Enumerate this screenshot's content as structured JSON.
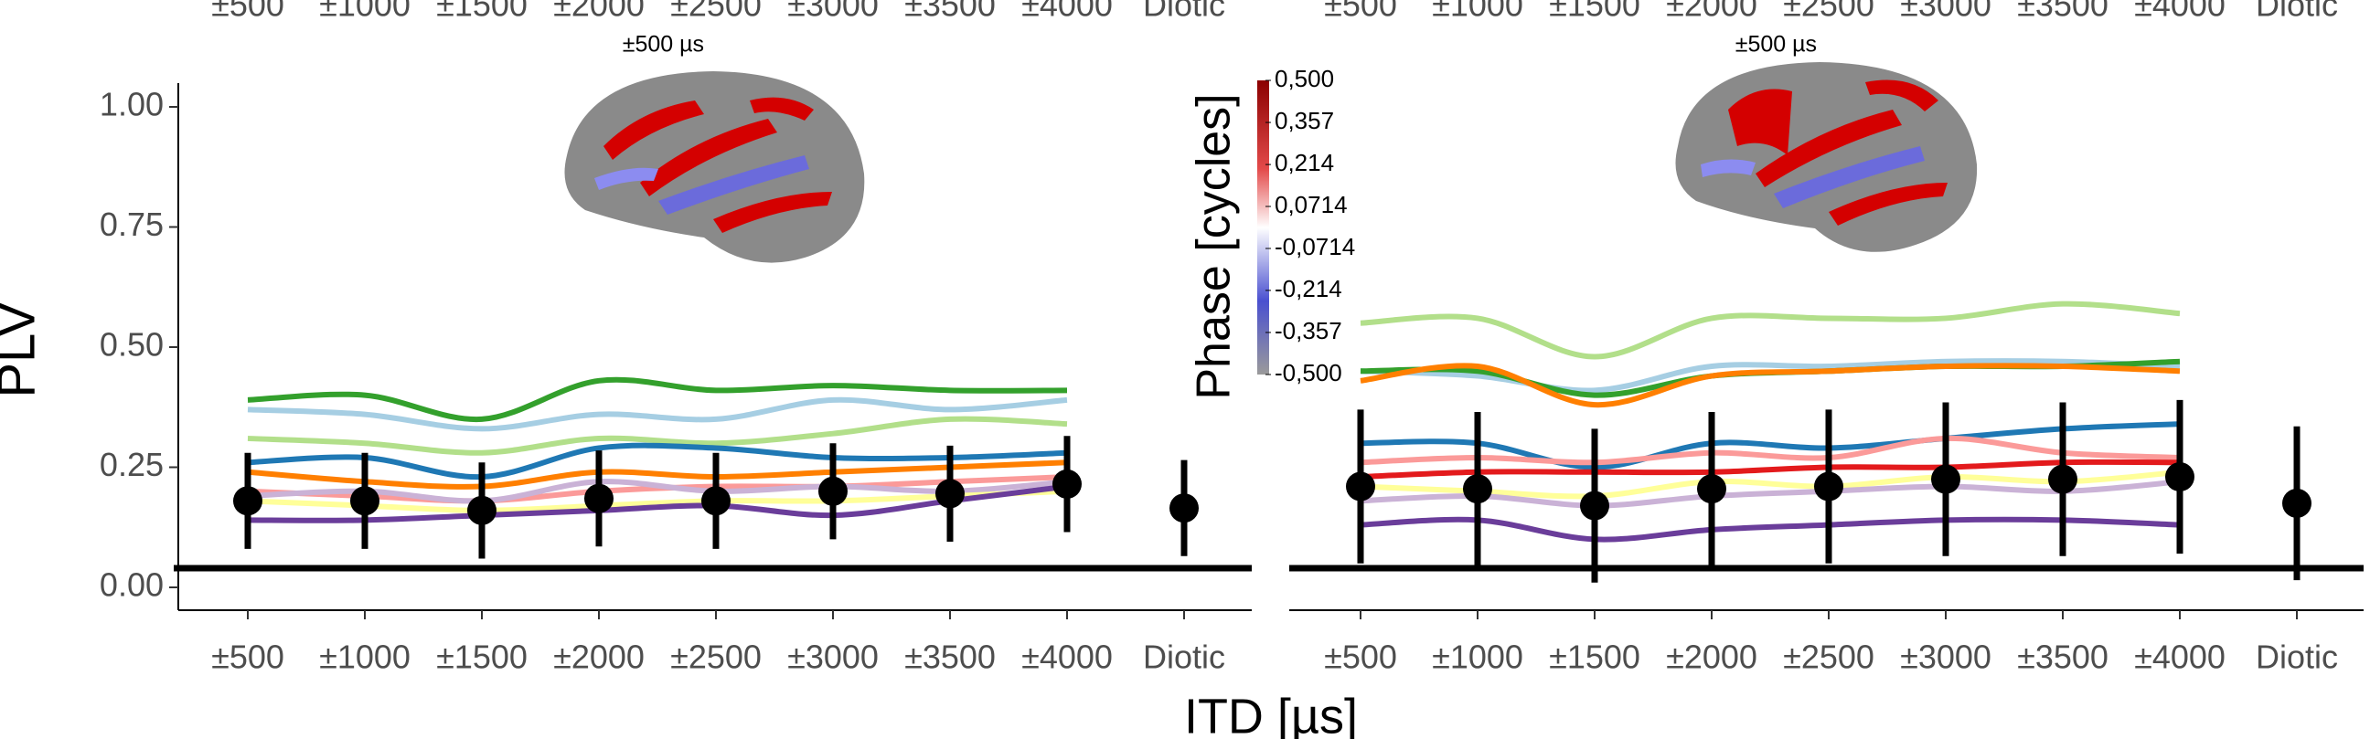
{
  "chart_data": [
    {
      "type": "line",
      "annotation": "±500 µs",
      "ylabel": "PLV",
      "xlabel": "ITD [µs]",
      "categories": [
        "±500",
        "±1000",
        "±1500",
        "±2000",
        "±2500",
        "±3000",
        "±3500",
        "±4000",
        "Diotic"
      ],
      "ylim": [
        0,
        1.05
      ],
      "yticks": [
        {
          "value": 0,
          "label": "0.00"
        },
        {
          "value": 0.25,
          "label": "0.25"
        },
        {
          "value": 0.5,
          "label": "0.50"
        },
        {
          "value": 0.75,
          "label": "0.75"
        },
        {
          "value": 1,
          "label": "1.00"
        }
      ],
      "reference_line": 0.04,
      "series": [
        {
          "color": "#33a02c",
          "values": [
            0.39,
            0.4,
            0.35,
            0.43,
            0.41,
            0.42,
            0.41,
            0.41,
            null
          ]
        },
        {
          "color": "#a6cee3",
          "values": [
            0.37,
            0.36,
            0.33,
            0.36,
            0.35,
            0.39,
            0.37,
            0.39,
            null
          ]
        },
        {
          "color": "#b2df8a",
          "values": [
            0.31,
            0.3,
            0.28,
            0.31,
            0.3,
            0.32,
            0.35,
            0.34,
            null
          ]
        },
        {
          "color": "#1f78b4",
          "values": [
            0.26,
            0.27,
            0.23,
            0.29,
            0.29,
            0.27,
            0.27,
            0.28,
            null
          ]
        },
        {
          "color": "#ff7f00",
          "values": [
            0.24,
            0.22,
            0.21,
            0.24,
            0.23,
            0.24,
            0.25,
            0.26,
            null
          ]
        },
        {
          "color": "#fb9a99",
          "values": [
            0.2,
            0.19,
            0.18,
            0.2,
            0.21,
            0.21,
            0.22,
            0.23,
            null
          ]
        },
        {
          "color": "#cab2d6",
          "values": [
            0.19,
            0.2,
            0.18,
            0.22,
            0.2,
            0.21,
            0.2,
            0.22,
            null
          ]
        },
        {
          "color": "#ffff99",
          "values": [
            0.18,
            0.17,
            0.16,
            0.17,
            0.18,
            0.18,
            0.19,
            0.2,
            null
          ]
        },
        {
          "color": "#6a3d9a",
          "values": [
            0.14,
            0.14,
            0.15,
            0.16,
            0.17,
            0.15,
            0.18,
            0.21,
            null
          ]
        }
      ],
      "mean": {
        "color": "#000000",
        "values": [
          0.18,
          0.18,
          0.16,
          0.185,
          0.18,
          0.2,
          0.195,
          0.215,
          0.165
        ],
        "errors": [
          0.1,
          0.1,
          0.1,
          0.1,
          0.1,
          0.1,
          0.1,
          0.1,
          0.1
        ]
      },
      "colorbar": {
        "title": "Phase [cycles]",
        "lim": [
          -0.5,
          0.5
        ],
        "ticks": [
          {
            "value": 0.5,
            "label": "0,500"
          },
          {
            "value": 0.357,
            "label": "0,357"
          },
          {
            "value": 0.214,
            "label": "0,214"
          },
          {
            "value": 0.0714,
            "label": "0,0714"
          },
          {
            "value": -0.0714,
            "label": "-0,0714"
          },
          {
            "value": -0.214,
            "label": "-0,214"
          },
          {
            "value": -0.357,
            "label": "-0,357"
          },
          {
            "value": -0.5,
            "label": "-0,500"
          }
        ]
      }
    },
    {
      "type": "line",
      "annotation": "±500 µs",
      "categories": [
        "±500",
        "±1000",
        "±1500",
        "±2000",
        "±2500",
        "±3000",
        "±3500",
        "±4000",
        "Diotic"
      ],
      "ylim": [
        0,
        1.05
      ],
      "reference_line": 0.04,
      "series": [
        {
          "color": "#b2df8a",
          "values": [
            0.55,
            0.56,
            0.48,
            0.56,
            0.56,
            0.56,
            0.59,
            0.57,
            null
          ]
        },
        {
          "color": "#a6cee3",
          "values": [
            0.45,
            0.44,
            0.41,
            0.46,
            0.46,
            0.47,
            0.47,
            0.46,
            null
          ]
        },
        {
          "color": "#33a02c",
          "values": [
            0.45,
            0.45,
            0.4,
            0.44,
            0.45,
            0.46,
            0.46,
            0.47,
            null
          ]
        },
        {
          "color": "#ff7f00",
          "values": [
            0.43,
            0.46,
            0.38,
            0.44,
            0.45,
            0.46,
            0.46,
            0.45,
            null
          ]
        },
        {
          "color": "#1f78b4",
          "values": [
            0.3,
            0.3,
            0.25,
            0.3,
            0.29,
            0.31,
            0.33,
            0.34,
            null
          ]
        },
        {
          "color": "#fb9a99",
          "values": [
            0.26,
            0.27,
            0.26,
            0.28,
            0.27,
            0.31,
            0.28,
            0.27,
            null
          ]
        },
        {
          "color": "#e31a1c",
          "values": [
            0.23,
            0.24,
            0.24,
            0.24,
            0.25,
            0.25,
            0.26,
            0.26,
            null
          ]
        },
        {
          "color": "#ffff99",
          "values": [
            0.21,
            0.2,
            0.19,
            0.22,
            0.21,
            0.23,
            0.22,
            0.24,
            null
          ]
        },
        {
          "color": "#cab2d6",
          "values": [
            0.18,
            0.19,
            0.17,
            0.19,
            0.2,
            0.21,
            0.2,
            0.22,
            null
          ]
        },
        {
          "color": "#6a3d9a",
          "values": [
            0.13,
            0.14,
            0.1,
            0.12,
            0.13,
            0.14,
            0.14,
            0.13,
            null
          ]
        }
      ],
      "mean": {
        "color": "#000000",
        "values": [
          0.21,
          0.205,
          0.17,
          0.205,
          0.21,
          0.225,
          0.225,
          0.23,
          0.175
        ],
        "errors": [
          0.16,
          0.16,
          0.16,
          0.16,
          0.16,
          0.16,
          0.16,
          0.16,
          0.16
        ]
      }
    }
  ]
}
